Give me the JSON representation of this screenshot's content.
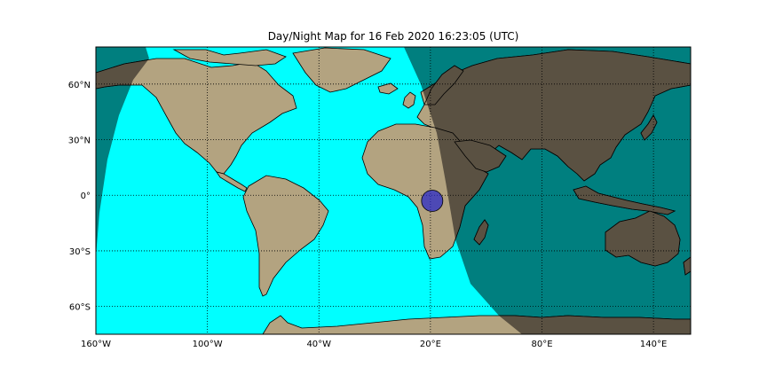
{
  "title": "Day/Night Map for 16 Feb 2020 16:23:05 (UTC)",
  "projection": "equirectangular",
  "extent": {
    "lon": [
      -160,
      160
    ],
    "lat": [
      -75,
      80
    ]
  },
  "colors": {
    "ocean_day": "#00ffff",
    "ocean_night": "#007f7f",
    "land_day": "#b3a380",
    "land_night": "#5a5142",
    "coastline": "#000000",
    "subsolar_marker": "#2222cc"
  },
  "subsolar_point": {
    "lon": 9,
    "lat": -3
  },
  "meridians": [
    {
      "lon": -160,
      "label": "160°W"
    },
    {
      "lon": -100,
      "label": "100°W"
    },
    {
      "lon": -40,
      "label": "40°W"
    },
    {
      "lon": 20,
      "label": "20°E"
    },
    {
      "lon": 80,
      "label": "80°E"
    },
    {
      "lon": 140,
      "label": "140°E"
    }
  ],
  "parallels": [
    {
      "lat": 60,
      "label": "60°N"
    },
    {
      "lat": 30,
      "label": "30°N"
    },
    {
      "lat": 0,
      "label": "0°"
    },
    {
      "lat": -30,
      "label": "30°S"
    },
    {
      "lat": -60,
      "label": "60°S"
    }
  ]
}
